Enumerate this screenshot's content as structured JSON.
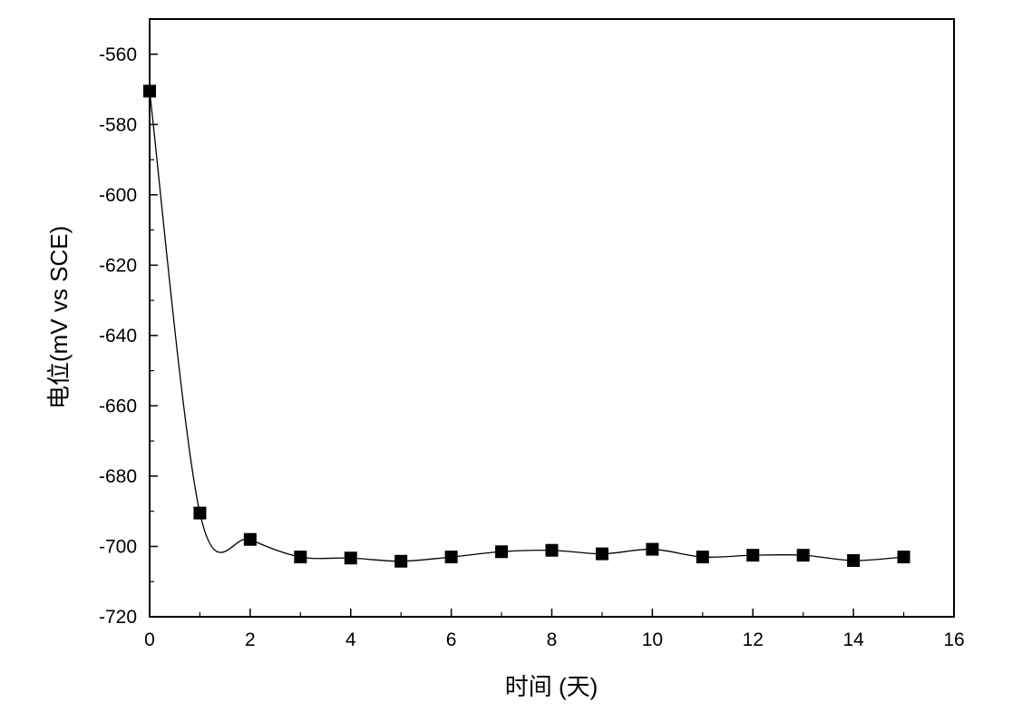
{
  "chart_data": {
    "type": "scatter",
    "title": "",
    "xlabel": "时间 (天)",
    "ylabel": "电位(mV vs SCE)",
    "xlim": [
      0,
      16
    ],
    "ylim": [
      -720,
      -550
    ],
    "x_ticks": [
      0,
      2,
      4,
      6,
      8,
      10,
      12,
      14,
      16
    ],
    "y_ticks": [
      -560,
      -580,
      -600,
      -620,
      -640,
      -660,
      -680,
      -700,
      -720
    ],
    "grid": false,
    "legend": "none",
    "series": [
      {
        "x": [
          0,
          1,
          2,
          3,
          4,
          5,
          6,
          7,
          8,
          9,
          10,
          11,
          12,
          13,
          14,
          15
        ],
        "y": [
          -570.5,
          -690.5,
          -698,
          -703,
          -703.3,
          -704.2,
          -703,
          -701.5,
          -701.1,
          -702.1,
          -700.8,
          -703,
          -702.5,
          -702.5,
          -704,
          -703
        ],
        "marker": "square",
        "smooth_line": true,
        "color": "#000000"
      }
    ]
  }
}
